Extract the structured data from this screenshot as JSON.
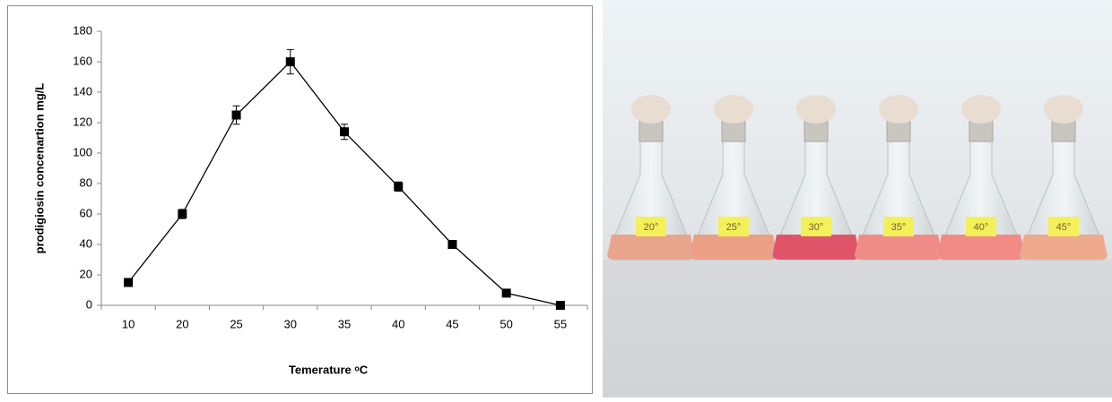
{
  "chart_data": {
    "type": "line",
    "ylabel": "prodigiosin concenartion  mg/L",
    "xlabel": "Temerature ᵒC",
    "categories": [
      "10",
      "20",
      "25",
      "30",
      "35",
      "40",
      "45",
      "50",
      "55"
    ],
    "values": [
      15,
      60,
      125,
      160,
      114,
      78,
      40,
      8,
      0
    ],
    "errors": [
      0,
      3,
      6,
      8,
      5,
      3,
      2,
      1,
      0
    ],
    "color": "#000000",
    "ylim": [
      0,
      180
    ],
    "yticks": [
      0,
      20,
      40,
      60,
      80,
      100,
      120,
      140,
      160,
      180
    ],
    "grid": false
  },
  "photo": {
    "labels": [
      "20°",
      "25°",
      "30°",
      "35°",
      "40°",
      "45°"
    ]
  }
}
